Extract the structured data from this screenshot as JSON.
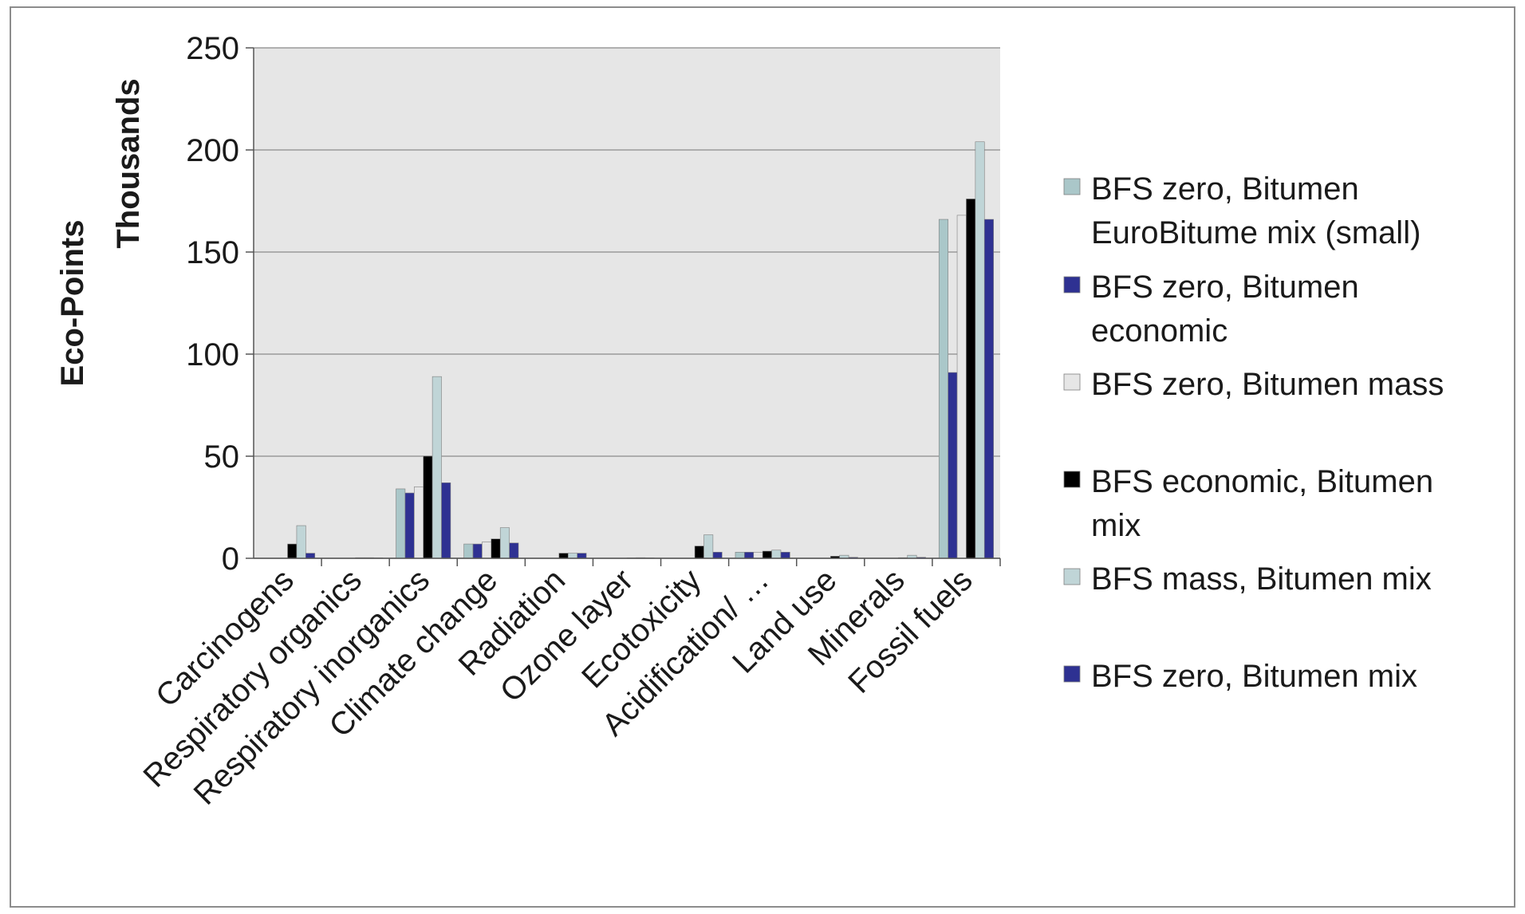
{
  "chart_data": {
    "type": "bar",
    "ylabel": "Eco-Points",
    "yunit_label": "Thousands",
    "ylim": [
      0,
      250
    ],
    "yticks": [
      "0",
      "50",
      "100",
      "150",
      "200",
      "250"
    ],
    "grid": true,
    "legend_position": "right",
    "categories": [
      "Carcinogens",
      "Respiratory organics",
      "Respiratory inorganics",
      "Climate change",
      "Radiation",
      "Ozone layer",
      "Ecotoxicity",
      "Acidification/ …",
      "Land use",
      "Minerals",
      "Fossil fuels"
    ],
    "series": [
      {
        "name": "BFS zero, Bitumen EuroBitume mix (small)",
        "legend_lines": [
          "BFS zero, Bitumen",
          "EuroBitume mix (small)"
        ],
        "color": "#aac7c9",
        "values": [
          0,
          0,
          34,
          7,
          0,
          0,
          0,
          3,
          0,
          0,
          166
        ]
      },
      {
        "name": "BFS zero, Bitumen economic",
        "legend_lines": [
          "BFS zero, Bitumen",
          "economic"
        ],
        "color": "#2e3192",
        "values": [
          0,
          0,
          32,
          7,
          0,
          0,
          0,
          3,
          0,
          0,
          91
        ]
      },
      {
        "name": "BFS zero, Bitumen mass",
        "legend_lines": [
          "BFS zero, Bitumen mass"
        ],
        "color": "#e6e6e6",
        "values": [
          0,
          0,
          35,
          8,
          0,
          0,
          0,
          3,
          0,
          0,
          168
        ]
      },
      {
        "name": "BFS economic, Bitumen mix",
        "legend_lines": [
          "BFS economic, Bitumen",
          "mix"
        ],
        "color": "#000000",
        "values": [
          7,
          0.3,
          50,
          9.5,
          2.5,
          0.2,
          6,
          3.5,
          1,
          0.3,
          176
        ]
      },
      {
        "name": "BFS mass, Bitumen mix",
        "legend_lines": [
          "BFS mass, Bitumen mix"
        ],
        "color": "#c0d5d7",
        "values": [
          16,
          0.3,
          89,
          15,
          2.5,
          0.3,
          11.5,
          4,
          1.5,
          1.5,
          204
        ]
      },
      {
        "name": "BFS zero, Bitumen mix",
        "legend_lines": [
          "BFS zero, Bitumen mix"
        ],
        "color": "#2e3192",
        "values": [
          2.5,
          0.2,
          37,
          7.5,
          2.5,
          0.2,
          3,
          3,
          0.5,
          0.5,
          166
        ]
      }
    ]
  }
}
